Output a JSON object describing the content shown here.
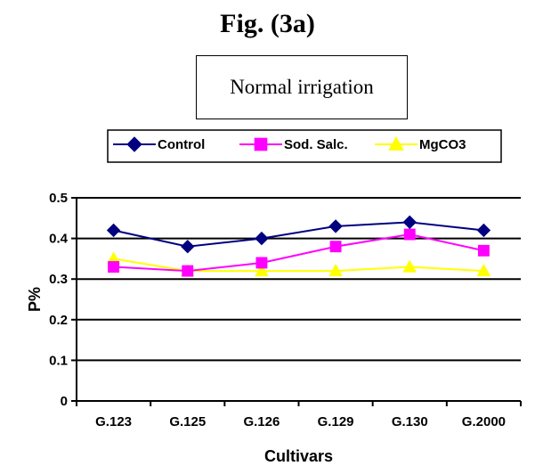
{
  "figure": {
    "title": "Fig. (3a)",
    "subtitle": "Normal irrigation"
  },
  "chart_data": {
    "type": "line",
    "title": "Normal irrigation",
    "xlabel": "Cultivars",
    "ylabel": "P%",
    "categories": [
      "G.123",
      "G.125",
      "G.126",
      "G.129",
      "G.130",
      "G.2000"
    ],
    "ylim": [
      0,
      0.5
    ],
    "yticks": [
      "0",
      "0.1",
      "0.2",
      "0.3",
      "0.4",
      "0.5"
    ],
    "grid": "horizontal",
    "legend_position": "top",
    "series": [
      {
        "name": "Control",
        "color": "#000080",
        "marker": "diamond",
        "values": [
          0.42,
          0.38,
          0.4,
          0.43,
          0.44,
          0.42
        ]
      },
      {
        "name": "Sod. Salc.",
        "color": "#FF00FF",
        "marker": "square",
        "values": [
          0.33,
          0.32,
          0.34,
          0.38,
          0.41,
          0.37
        ]
      },
      {
        "name": "MgCO3",
        "color": "#FFFF00",
        "marker": "triangle",
        "values": [
          0.35,
          0.32,
          0.32,
          0.32,
          0.33,
          0.32
        ]
      }
    ]
  }
}
